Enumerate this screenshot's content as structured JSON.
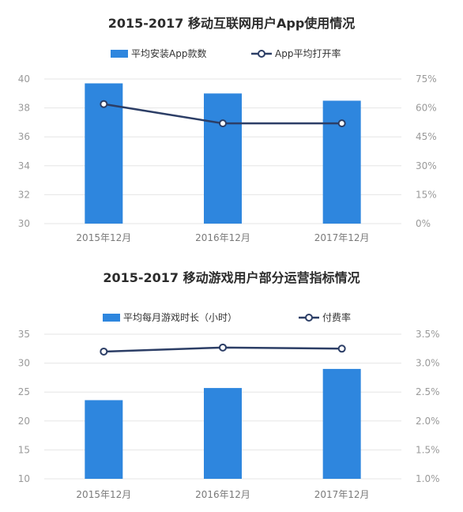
{
  "chart_data": [
    {
      "type": "bar",
      "title": "2015-2017 移动互联网用户App使用情况",
      "categories": [
        "2015年12月",
        "2016年12月",
        "2017年12月"
      ],
      "ylim": [
        30,
        40
      ],
      "y_ticks": [
        "30",
        "32",
        "34",
        "36",
        "38",
        "40"
      ],
      "y2lim": [
        0,
        75
      ],
      "y2_ticks": [
        "0%",
        "15%",
        "30%",
        "45%",
        "60%",
        "75%"
      ],
      "grid": true,
      "legend_position": "top-center",
      "series": [
        {
          "name": "平均安装App款数",
          "type": "bar",
          "axis": "left",
          "color": "#2e86de",
          "values": [
            39.7,
            39.0,
            38.5
          ]
        },
        {
          "name": "App平均打开率",
          "type": "line",
          "axis": "right",
          "color": "#2c3e66",
          "values": [
            62,
            52,
            52
          ]
        }
      ]
    },
    {
      "type": "bar",
      "title": "2015-2017 移动游戏用户部分运营指标情况",
      "categories": [
        "2015年12月",
        "2016年12月",
        "2017年12月"
      ],
      "ylim": [
        10,
        35
      ],
      "y_ticks": [
        "10",
        "15",
        "20",
        "25",
        "30",
        "35"
      ],
      "y2lim": [
        1.0,
        3.5
      ],
      "y2_ticks": [
        "1.0%",
        "1.5%",
        "2.0%",
        "2.5%",
        "3.0%",
        "3.5%"
      ],
      "grid": true,
      "legend_position": "top-center",
      "series": [
        {
          "name": "平均每月游戏时长（小时）",
          "type": "bar",
          "axis": "left",
          "color": "#2e86de",
          "values": [
            23.6,
            25.7,
            29.0
          ]
        },
        {
          "name": "付费率",
          "type": "line",
          "axis": "right",
          "color": "#2c3e66",
          "values": [
            3.2,
            3.27,
            3.25
          ]
        }
      ]
    }
  ]
}
